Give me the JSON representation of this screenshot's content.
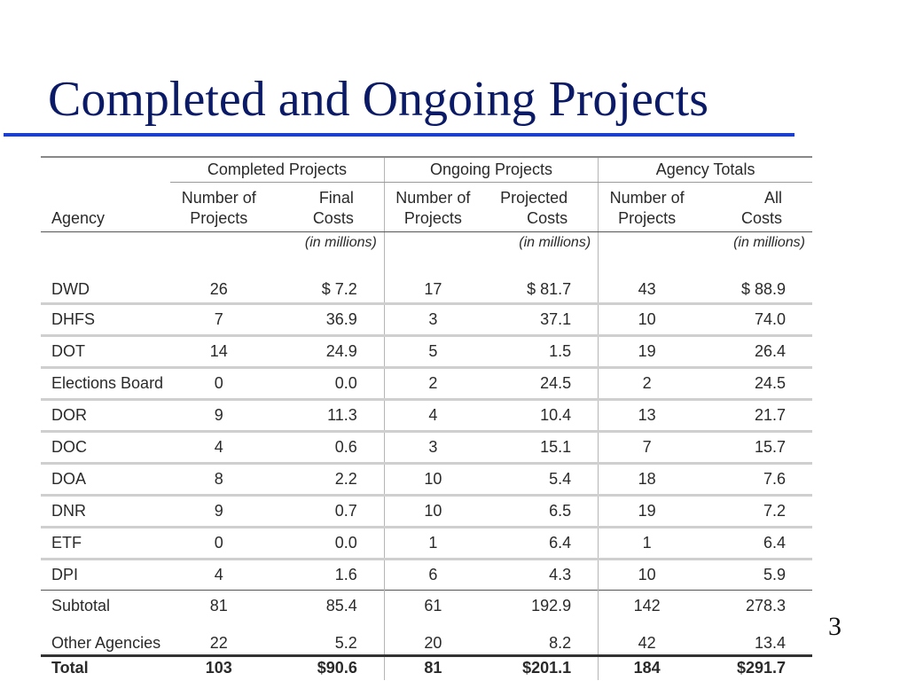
{
  "slide": {
    "title": "Completed and Ongoing Projects",
    "page_number": "3"
  },
  "table": {
    "groups": [
      "Completed Projects",
      "Ongoing Projects",
      "Agency Totals"
    ],
    "columns": {
      "agency": "Agency",
      "num_projects": [
        "Number of",
        "Projects"
      ],
      "final_costs": [
        "Final",
        "Costs"
      ],
      "projected_costs": [
        "Projected",
        "Costs"
      ],
      "all_costs": [
        "All",
        "Costs"
      ]
    },
    "unit": "(in millions)",
    "rows": [
      {
        "agency": "DWD",
        "completed_n": "26",
        "completed_cost": "$ 7.2",
        "ongoing_n": "17",
        "ongoing_cost": "$  81.7",
        "total_n": "43",
        "total_cost": "$  88.9"
      },
      {
        "agency": "DHFS",
        "completed_n": "7",
        "completed_cost": "36.9",
        "ongoing_n": "3",
        "ongoing_cost": "37.1",
        "total_n": "10",
        "total_cost": "74.0"
      },
      {
        "agency": "DOT",
        "completed_n": "14",
        "completed_cost": "24.9",
        "ongoing_n": "5",
        "ongoing_cost": "1.5",
        "total_n": "19",
        "total_cost": "26.4"
      },
      {
        "agency": "Elections Board",
        "completed_n": "0",
        "completed_cost": "0.0",
        "ongoing_n": "2",
        "ongoing_cost": "24.5",
        "total_n": "2",
        "total_cost": "24.5"
      },
      {
        "agency": "DOR",
        "completed_n": "9",
        "completed_cost": "11.3",
        "ongoing_n": "4",
        "ongoing_cost": "10.4",
        "total_n": "13",
        "total_cost": "21.7"
      },
      {
        "agency": "DOC",
        "completed_n": "4",
        "completed_cost": "0.6",
        "ongoing_n": "3",
        "ongoing_cost": "15.1",
        "total_n": "7",
        "total_cost": "15.7"
      },
      {
        "agency": "DOA",
        "completed_n": "8",
        "completed_cost": "2.2",
        "ongoing_n": "10",
        "ongoing_cost": "5.4",
        "total_n": "18",
        "total_cost": "7.6"
      },
      {
        "agency": "DNR",
        "completed_n": "9",
        "completed_cost": "0.7",
        "ongoing_n": "10",
        "ongoing_cost": "6.5",
        "total_n": "19",
        "total_cost": "7.2"
      },
      {
        "agency": "ETF",
        "completed_n": "0",
        "completed_cost": "0.0",
        "ongoing_n": "1",
        "ongoing_cost": "6.4",
        "total_n": "1",
        "total_cost": "6.4"
      },
      {
        "agency": "DPI",
        "completed_n": "4",
        "completed_cost": "1.6",
        "ongoing_n": "6",
        "ongoing_cost": "4.3",
        "total_n": "10",
        "total_cost": "5.9"
      }
    ],
    "subtotal": {
      "agency": "Subtotal",
      "completed_n": "81",
      "completed_cost": "85.4",
      "ongoing_n": "61",
      "ongoing_cost": "192.9",
      "total_n": "142",
      "total_cost": "278.3"
    },
    "other": {
      "agency": "Other Agencies",
      "completed_n": "22",
      "completed_cost": "5.2",
      "ongoing_n": "20",
      "ongoing_cost": "8.2",
      "total_n": "42",
      "total_cost": "13.4"
    },
    "total": {
      "agency": "Total",
      "completed_n": "103",
      "completed_cost": "$90.6",
      "ongoing_n": "81",
      "ongoing_cost": "$201.1",
      "total_n": "184",
      "total_cost": "$291.7"
    }
  }
}
